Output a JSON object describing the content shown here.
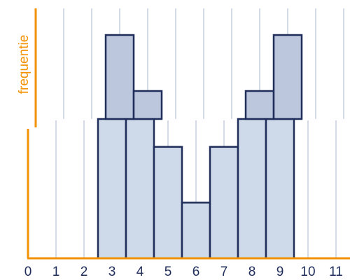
{
  "chart_data": [
    {
      "id": "top_panel",
      "type": "bar",
      "ylabel": "frequentie",
      "x": [
        3,
        4,
        8,
        9
      ],
      "values": [
        3,
        1,
        1,
        3
      ],
      "bar_width": 1,
      "xlim": [
        0,
        11
      ],
      "ylim": [
        0,
        3
      ],
      "grid": true
    },
    {
      "id": "bottom_panel",
      "type": "bar",
      "x": [
        3,
        4,
        5,
        6,
        7,
        8,
        9
      ],
      "values": [
        5,
        5,
        4,
        2,
        4,
        5,
        5
      ],
      "bar_width": 1,
      "xlim": [
        0,
        11
      ],
      "ylim": [
        0,
        5
      ],
      "grid": true,
      "x_ticks": [
        "0",
        "1",
        "2",
        "3",
        "4",
        "5",
        "6",
        "7",
        "8",
        "9",
        "10",
        "11"
      ]
    }
  ],
  "colors": {
    "axis": "#F39200",
    "bar_fill": "#CED9EA",
    "bar_fill_dark": "#BCC7DD",
    "bar_stroke": "#1F2D5A",
    "grid": "#D5DBE6",
    "tick_text": "#1F2D5A"
  }
}
